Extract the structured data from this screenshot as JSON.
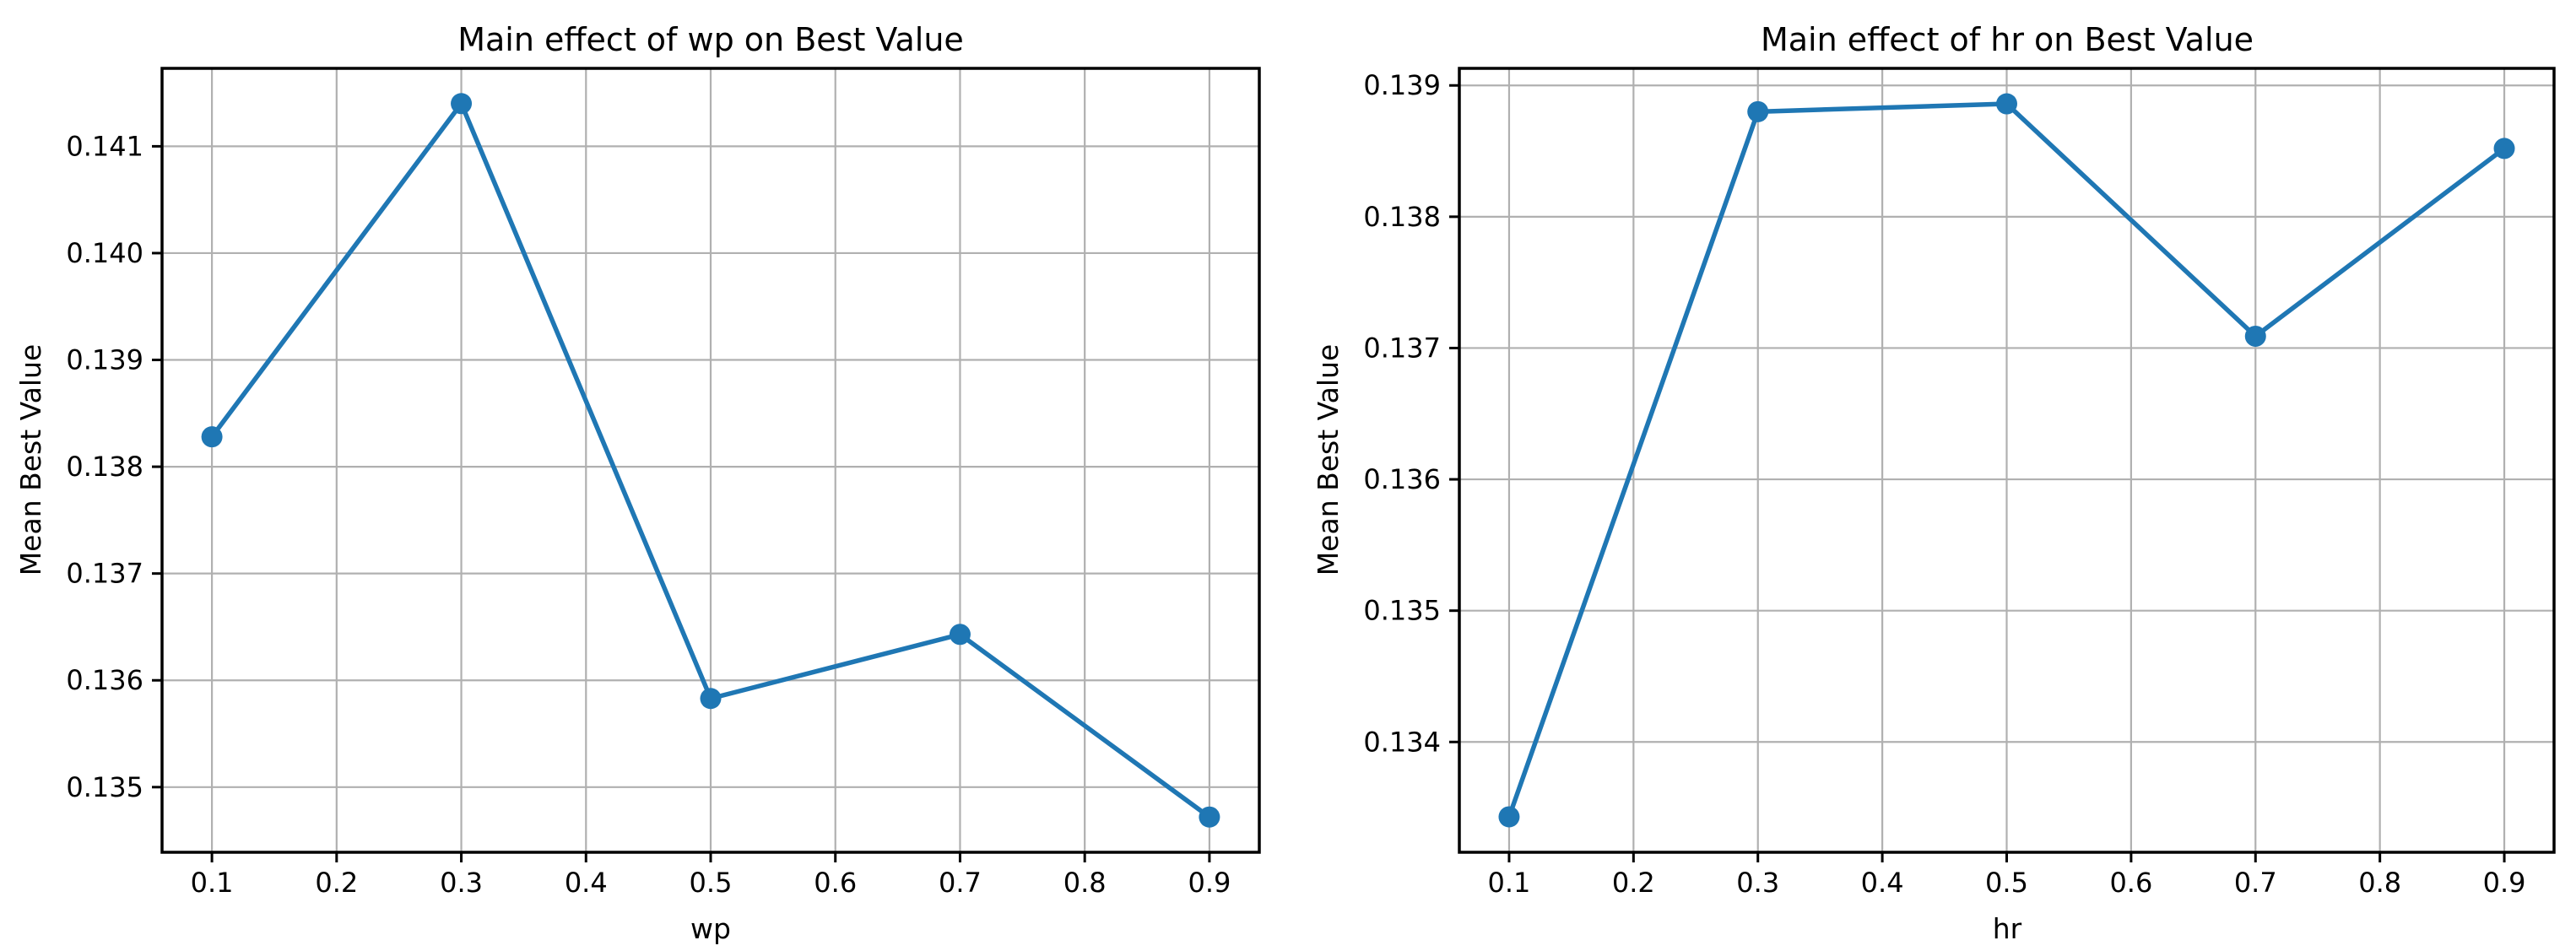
{
  "figure": {
    "background": "#ffffff",
    "line_color": "#1f77b4",
    "marker_color": "#1f77b4",
    "grid_color": "#b0b0b0",
    "spine_color": "#000000",
    "text_color": "#000000"
  },
  "chart_data": [
    {
      "type": "line",
      "title": "Main effect of wp on Best Value",
      "xlabel": "wp",
      "ylabel": "Mean Best Value",
      "x": [
        0.1,
        0.3,
        0.5,
        0.7,
        0.9
      ],
      "y": [
        0.13828,
        0.1414,
        0.13583,
        0.13643,
        0.13472
      ],
      "xticks": [
        0.1,
        0.2,
        0.3,
        0.4,
        0.5,
        0.6,
        0.7,
        0.8,
        0.9
      ],
      "yticks": [
        0.135,
        0.136,
        0.137,
        0.138,
        0.139,
        0.14,
        0.141
      ],
      "xtick_labels": [
        "0.1",
        "0.2",
        "0.3",
        "0.4",
        "0.5",
        "0.6",
        "0.7",
        "0.8",
        "0.9"
      ],
      "ytick_labels": [
        "0.135",
        "0.136",
        "0.137",
        "0.138",
        "0.139",
        "0.140",
        "0.141"
      ],
      "xlim": [
        0.06,
        0.94
      ],
      "ylim": [
        0.13439,
        0.14173
      ],
      "grid": true,
      "marker": "o",
      "legend": null
    },
    {
      "type": "line",
      "title": "Main effect of hr on Best Value",
      "xlabel": "hr",
      "ylabel": "Mean Best Value",
      "x": [
        0.1,
        0.3,
        0.5,
        0.7,
        0.9
      ],
      "y": [
        0.13343,
        0.1388,
        0.13886,
        0.13709,
        0.13852
      ],
      "xticks": [
        0.1,
        0.2,
        0.3,
        0.4,
        0.5,
        0.6,
        0.7,
        0.8,
        0.9
      ],
      "yticks": [
        0.134,
        0.135,
        0.136,
        0.137,
        0.138,
        0.139
      ],
      "xtick_labels": [
        "0.1",
        "0.2",
        "0.3",
        "0.4",
        "0.5",
        "0.6",
        "0.7",
        "0.8",
        "0.9"
      ],
      "ytick_labels": [
        "0.134",
        "0.135",
        "0.136",
        "0.137",
        "0.138",
        "0.139"
      ],
      "xlim": [
        0.06,
        0.94
      ],
      "ylim": [
        0.13316,
        0.13913
      ],
      "grid": true,
      "marker": "o",
      "legend": null
    }
  ]
}
